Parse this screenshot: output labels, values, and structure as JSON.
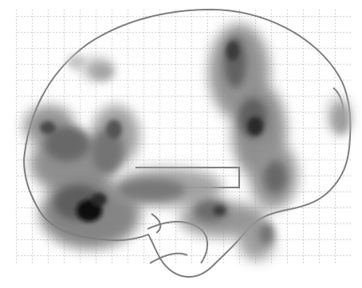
{
  "image": {
    "kind": "glass-brain-projection",
    "view": "sagittal",
    "colors": {
      "background": "#ffffff",
      "grid": "#9a9a9a",
      "outline": "#7d7d7d",
      "blob_light": "#b9b9b9",
      "blob_mid": "#8d8d8d",
      "blob_dark": "#555555",
      "blob_darkest": "#111111"
    },
    "grid": true
  }
}
